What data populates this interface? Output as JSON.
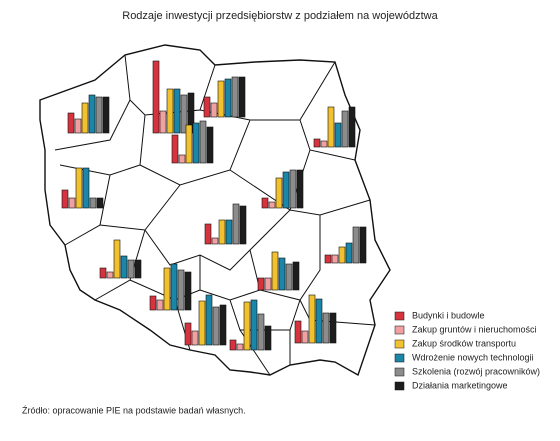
{
  "chart_data": {
    "type": "bar",
    "title": "Rodzaje inwestycji przedsiębiorstw z podziałem na województwa",
    "source": "Źródło: opracowanie PIE na podstawie badań własnych.",
    "categories": [
      null,
      null,
      null,
      null,
      null,
      null,
      null,
      null,
      null,
      null,
      null,
      null,
      null,
      null,
      null
    ],
    "ylim": [
      0,
      80
    ],
    "series": [
      {
        "name": "Budynki i budowle",
        "color": "#d7333f",
        "values": [
          72,
          20,
          20,
          8,
          28,
          18,
          10,
          10,
          20,
          8,
          14,
          12,
          22,
          10,
          22
        ]
      },
      {
        "name": "Zakup gruntów i nieruchomości",
        "color": "#f0a0a0",
        "values": [
          22,
          14,
          14,
          6,
          8,
          10,
          6,
          6,
          6,
          8,
          10,
          12,
          14,
          6,
          12
        ]
      },
      {
        "name": "Zakup środków transportu",
        "color": "#f2c12e",
        "values": [
          44,
          30,
          36,
          40,
          38,
          40,
          30,
          38,
          24,
          16,
          42,
          38,
          44,
          48,
          48
        ]
      },
      {
        "name": "Wdrożenie nowych technologii",
        "color": "#1a86a8",
        "values": [
          44,
          38,
          38,
          24,
          40,
          40,
          36,
          22,
          24,
          20,
          46,
          32,
          50,
          50,
          44
        ]
      },
      {
        "name": "Szkolenia (rozwój pracowników)",
        "color": "#8c8c8c",
        "values": [
          38,
          36,
          40,
          36,
          42,
          10,
          38,
          18,
          40,
          36,
          40,
          26,
          38,
          36,
          30
        ]
      },
      {
        "name": "Działania marketingowe",
        "color": "#1d1d1d",
        "values": [
          40,
          36,
          40,
          40,
          36,
          10,
          38,
          18,
          38,
          36,
          38,
          28,
          40,
          24,
          30
        ]
      }
    ]
  }
}
